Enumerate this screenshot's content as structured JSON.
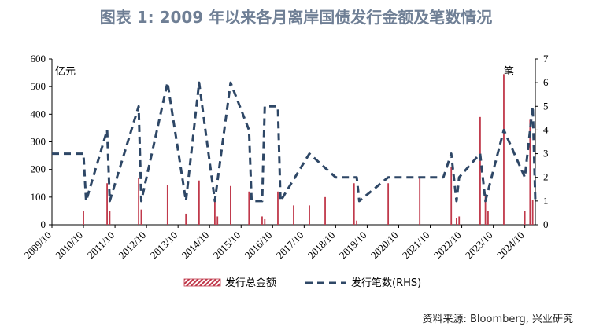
{
  "title": "图表 1:  2009 年以来各月离岸国债发行金额及笔数情况",
  "source": "资料来源: Bloomberg, 兴业研究",
  "chart_data": {
    "type": "bar+line",
    "left_unit": "亿元",
    "right_unit": "笔",
    "ylim_left": [
      0,
      600
    ],
    "ylim_right": [
      0,
      7
    ],
    "yticks_left": [
      "0",
      "100",
      "200",
      "300",
      "400",
      "500",
      "600"
    ],
    "yticks_right": [
      "0",
      "1",
      "2",
      "3",
      "4",
      "5",
      "6",
      "7"
    ],
    "xticks": [
      "2009/10",
      "2010/10",
      "2011/10",
      "2012/10",
      "2013/10",
      "2014/10",
      "2015/10",
      "2016/10",
      "2017/10",
      "2018/10",
      "2019/10",
      "2020/10",
      "2021/10",
      "2022/10",
      "2023/10",
      "2024/10"
    ],
    "x_start": "2009-10",
    "x_end": "2025-02",
    "series": [
      {
        "name": "发行总金额",
        "axis": "left",
        "color": "#c0394b",
        "points": [
          [
            "2010-10",
            50
          ],
          [
            "2011-07",
            150
          ],
          [
            "2011-08",
            50
          ],
          [
            "2012-07",
            170
          ],
          [
            "2012-08",
            55
          ],
          [
            "2013-06",
            145
          ],
          [
            "2014-01",
            40
          ],
          [
            "2014-06",
            160
          ],
          [
            "2014-12",
            90
          ],
          [
            "2015-01",
            30
          ],
          [
            "2015-06",
            140
          ],
          [
            "2016-01",
            120
          ],
          [
            "2016-06",
            30
          ],
          [
            "2016-07",
            20
          ],
          [
            "2016-12",
            120
          ],
          [
            "2017-06",
            70
          ],
          [
            "2017-12",
            70
          ],
          [
            "2018-06",
            100
          ],
          [
            "2019-05",
            150
          ],
          [
            "2019-06",
            15
          ],
          [
            "2020-06",
            150
          ],
          [
            "2021-06",
            170
          ],
          [
            "2022-06",
            210
          ],
          [
            "2022-08",
            25
          ],
          [
            "2022-09",
            30
          ],
          [
            "2023-05",
            390
          ],
          [
            "2023-07",
            110
          ],
          [
            "2023-08",
            50
          ],
          [
            "2024-02",
            545
          ],
          [
            "2024-10",
            50
          ],
          [
            "2024-12",
            380
          ],
          [
            "2025-01",
            90
          ]
        ]
      },
      {
        "name": "发行笔数(RHS)",
        "axis": "right",
        "color": "#2e4766",
        "points": [
          [
            "2009-10",
            3
          ],
          [
            "2010-10",
            3
          ],
          [
            "2010-11",
            1
          ],
          [
            "2011-07",
            4
          ],
          [
            "2011-08",
            1
          ],
          [
            "2012-07",
            5
          ],
          [
            "2012-08",
            1
          ],
          [
            "2013-06",
            6
          ],
          [
            "2014-01",
            1
          ],
          [
            "2014-06",
            6
          ],
          [
            "2014-12",
            1
          ],
          [
            "2015-06",
            6
          ],
          [
            "2016-01",
            4
          ],
          [
            "2016-02",
            1
          ],
          [
            "2016-06",
            1
          ],
          [
            "2016-07",
            5
          ],
          [
            "2016-12",
            5
          ],
          [
            "2017-01",
            1
          ],
          [
            "2017-12",
            3
          ],
          [
            "2018-10",
            2
          ],
          [
            "2019-06",
            2
          ],
          [
            "2019-07",
            1
          ],
          [
            "2020-06",
            2
          ],
          [
            "2021-06",
            2
          ],
          [
            "2022-03",
            2
          ],
          [
            "2022-06",
            3
          ],
          [
            "2022-08",
            1
          ],
          [
            "2022-09",
            2
          ],
          [
            "2023-05",
            3
          ],
          [
            "2023-07",
            1
          ],
          [
            "2024-02",
            4
          ],
          [
            "2024-10",
            2
          ],
          [
            "2025-01",
            5
          ],
          [
            "2025-02",
            1
          ]
        ]
      }
    ]
  }
}
